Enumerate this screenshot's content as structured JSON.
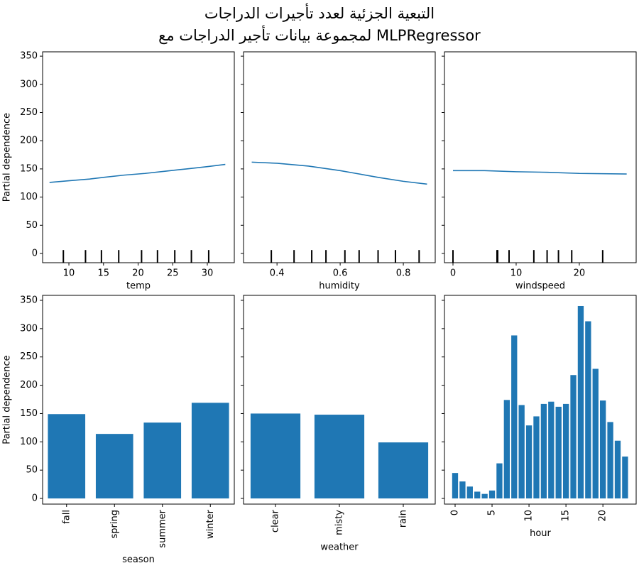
{
  "title": [
    "التبعية الجزئية لعدد تأجيرات الدراجات",
    "لمجموعة بيانات تأجير الدراجات مع MLPRegressor"
  ],
  "chart_data": [
    {
      "type": "line",
      "x_label": "temp",
      "y_label": "Partial dependence",
      "ytick_labels": true,
      "color": "#1f77b4",
      "x": [
        7.2,
        10,
        13,
        15,
        18,
        21,
        24,
        27,
        30,
        32.6
      ],
      "values": [
        126,
        129,
        132,
        135,
        139,
        142,
        146,
        150,
        154,
        158
      ],
      "deciles": [
        9.2,
        12.4,
        14.7,
        17.2,
        20.5,
        22.8,
        25.3,
        27.7,
        30.2
      ],
      "xlim": [
        6.2,
        33.9
      ],
      "xticks": [
        10,
        15,
        20,
        25,
        30
      ],
      "ylim": [
        -16.4,
        357.7
      ],
      "yticks": [
        0,
        50,
        100,
        150,
        200,
        250,
        300,
        350
      ]
    },
    {
      "type": "line",
      "x_label": "humidity",
      "ytick_labels": false,
      "color": "#1f77b4",
      "x": [
        0.32,
        0.4,
        0.5,
        0.6,
        0.65,
        0.72,
        0.8,
        0.875
      ],
      "values": [
        162,
        160,
        155,
        147,
        142,
        135,
        128,
        123
      ],
      "deciles": [
        0.382,
        0.454,
        0.51,
        0.555,
        0.615,
        0.66,
        0.72,
        0.775,
        0.85
      ],
      "xlim": [
        0.294,
        0.901
      ],
      "xticks": [
        0.4,
        0.6,
        0.8
      ],
      "ylim": [
        -16.4,
        357.7
      ],
      "yticks": [
        0,
        50,
        100,
        150,
        200,
        250,
        300,
        350
      ]
    },
    {
      "type": "line",
      "x_label": "windspeed",
      "ytick_labels": false,
      "color": "#1f77b4",
      "x": [
        0,
        5,
        10,
        15,
        20,
        27.5
      ],
      "values": [
        147,
        147,
        145,
        144,
        142,
        141
      ],
      "deciles": [
        0,
        6.97,
        7.08,
        8.88,
        12.8,
        14.9,
        16.7,
        18.8,
        23.7
      ],
      "xlim": [
        -1.35,
        29.0
      ],
      "xticks": [
        0,
        10,
        20
      ],
      "ylim": [
        -16.4,
        357.7
      ],
      "yticks": [
        0,
        50,
        100,
        150,
        200,
        250,
        300,
        350
      ]
    },
    {
      "type": "bar",
      "x_label": "season",
      "y_label": "Partial dependence",
      "ytick_labels": true,
      "color": "#1f77b4",
      "categories": [
        "fall",
        "spring",
        "summer",
        "winter"
      ],
      "values": [
        149,
        114,
        134,
        169
      ],
      "ylim": [
        -10,
        358.8
      ],
      "yticks": [
        0,
        50,
        100,
        150,
        200,
        250,
        300,
        350
      ]
    },
    {
      "type": "bar",
      "x_label": "weather",
      "ytick_labels": false,
      "color": "#1f77b4",
      "categories": [
        "clear",
        "misty",
        "rain"
      ],
      "values": [
        150,
        148,
        99
      ],
      "ylim": [
        -10,
        358.8
      ],
      "yticks": [
        0,
        50,
        100,
        150,
        200,
        250,
        300,
        350
      ]
    },
    {
      "type": "bar",
      "x_label": "hour",
      "ytick_labels": false,
      "color": "#1f77b4",
      "x": [
        0,
        1,
        2,
        3,
        4,
        5,
        6,
        7,
        8,
        9,
        10,
        11,
        12,
        13,
        14,
        15,
        16,
        17,
        18,
        19,
        20,
        21,
        22,
        23
      ],
      "values": [
        45,
        30,
        21,
        12,
        8,
        14,
        62,
        174,
        288,
        165,
        129,
        145,
        167,
        171,
        162,
        167,
        218,
        340,
        313,
        229,
        173,
        135,
        102,
        74
      ],
      "xlim": [
        -1.44,
        24.5
      ],
      "xticks": [
        0,
        5,
        10,
        15,
        20
      ],
      "xtick_rotation": true,
      "ylim": [
        -10,
        358.8
      ],
      "yticks": [
        0,
        50,
        100,
        150,
        200,
        250,
        300,
        350
      ]
    }
  ]
}
